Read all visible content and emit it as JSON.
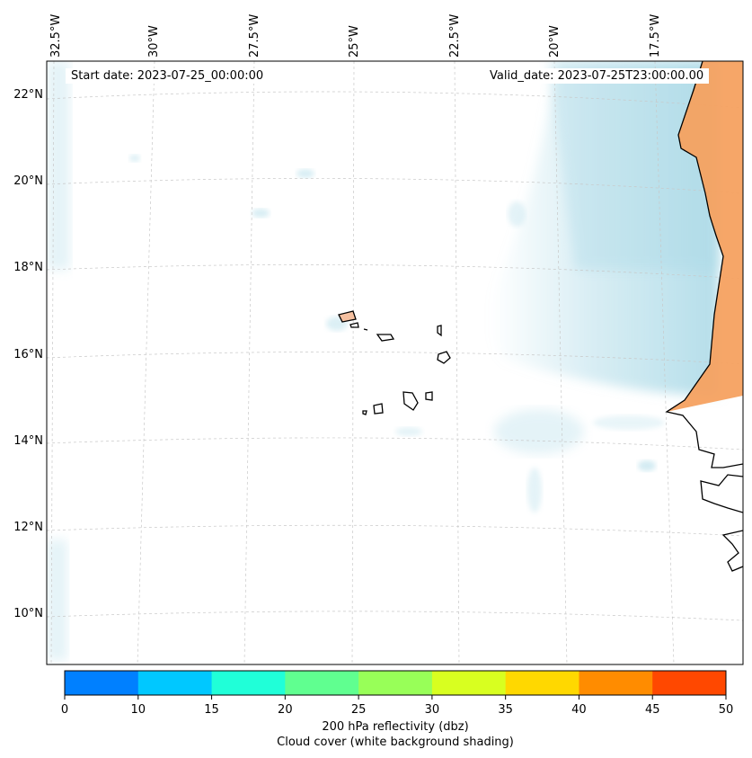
{
  "map": {
    "region": "Cabo Verde and West African coast",
    "start_date": "Start date: 2023-07-25_00:00:00",
    "valid_date": "Valid_date: 2023-07-25T23:00:00.00",
    "longitude_labels": [
      "32.5°W",
      "30°W",
      "27.5°W",
      "25°W",
      "22.5°W",
      "20°W",
      "17.5°W"
    ],
    "latitude_labels": [
      "22°N",
      "20°N",
      "18°N",
      "16°N",
      "14°N",
      "12°N",
      "10°N"
    ]
  },
  "colorbar": {
    "ticks": [
      "0",
      "10",
      "15",
      "20",
      "25",
      "30",
      "35",
      "40",
      "45",
      "50"
    ],
    "colors": [
      "#0080ff",
      "#00c8ff",
      "#20ffd8",
      "#60ff90",
      "#98ff58",
      "#d8ff20",
      "#ffd800",
      "#ff8c00",
      "#ff4800"
    ],
    "label_line1": "200 hPa reflectivity (dbz)",
    "label_line2": "Cloud cover (white background shading)"
  },
  "colors": {
    "cloud": "#a8d8e6",
    "land_reflectivity": "#f5a160",
    "coastline": "#000000",
    "gridline": "#c8c8c8"
  }
}
